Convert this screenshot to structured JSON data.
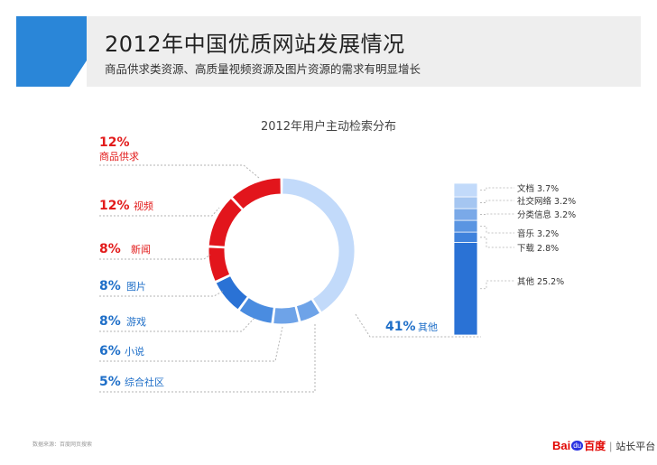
{
  "header": {
    "title": "2012年中国优质网站发展情况",
    "subtitle": "商品供求类资源、高质量视频资源及图片资源的需求有明显增长"
  },
  "footer": {
    "source": "数据来源：百度网页搜索",
    "logo_bai": "Bai",
    "logo_du": "du",
    "logo_cn": "百度",
    "logo_sep": "|",
    "logo_platform": "站长平台"
  },
  "colors": {
    "red": "#e2151c",
    "blue_dark": "#2a72d5",
    "blue_mid": "#4a8ce0",
    "blue_light": "#6ea3e8",
    "blue_pale": "#c2dafa",
    "label_red": "#e21b1b",
    "label_blue": "#1f6fc8"
  },
  "chart_data": [
    {
      "type": "pie",
      "title": "2012年用户主动检索分布",
      "slices": [
        {
          "name": "其他",
          "value": 41,
          "label": "41%",
          "color": "#c2dafa",
          "label_color": "#1f6fc8"
        },
        {
          "name": "综合社区",
          "value": 5,
          "label": "5%",
          "color": "#6ea3e8",
          "label_color": "#1f6fc8"
        },
        {
          "name": "小说",
          "value": 6,
          "label": "6%",
          "color": "#6ea3e8",
          "label_color": "#1f6fc8"
        },
        {
          "name": "游戏",
          "value": 8,
          "label": "8%",
          "color": "#4a8ce0",
          "label_color": "#1f6fc8"
        },
        {
          "name": "图片",
          "value": 8,
          "label": "8%",
          "color": "#2a72d5",
          "label_color": "#1f6fc8"
        },
        {
          "name": "新闻",
          "value": 8,
          "label": "8%",
          "color": "#e2151c",
          "label_color": "#e21b1b"
        },
        {
          "name": "视频",
          "value": 12,
          "label": "12%",
          "color": "#e2151c",
          "label_color": "#e21b1b"
        },
        {
          "name": "商品供求",
          "value": 12,
          "label": "12%",
          "color": "#e2151c",
          "label_color": "#e21b1b"
        }
      ]
    },
    {
      "type": "bar",
      "stacked": true,
      "categories": [
        "其他",
        "下载",
        "音乐",
        "分类信息",
        "社交网络",
        "文档"
      ],
      "values": [
        25.2,
        2.8,
        3.2,
        3.2,
        3.2,
        3.7
      ],
      "labels": [
        "其他 25.2%",
        "下载 2.8%",
        "音乐 3.2%",
        "分类信息 3.2%",
        "社交网络 3.2%",
        "文档 3.7%"
      ],
      "colors": [
        "#2a72d5",
        "#3f82dc",
        "#5a95e2",
        "#7aa9e8",
        "#a5c6f1",
        "#c2dafa"
      ]
    }
  ]
}
